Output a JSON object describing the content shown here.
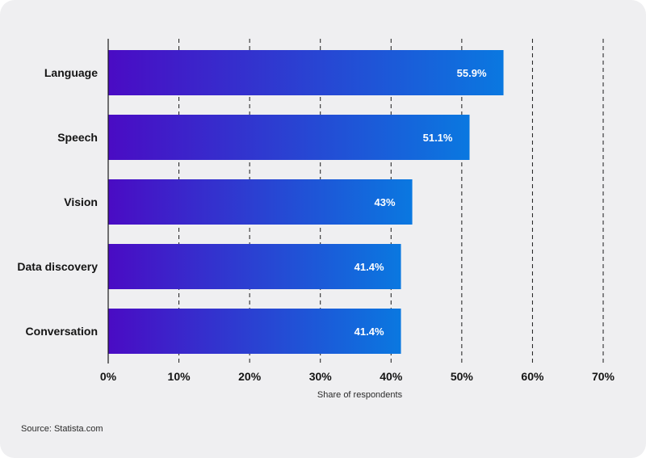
{
  "chart_data": {
    "type": "bar",
    "orientation": "horizontal",
    "categories": [
      "Language",
      "Speech",
      "Vision",
      "Data discovery",
      "Conversation"
    ],
    "values": [
      55.9,
      51.1,
      43,
      41.4,
      41.4
    ],
    "value_labels": [
      "55.9%",
      "51.1%",
      "43%",
      "41.4%",
      "41.4%"
    ],
    "xlabel": "Share of respondents",
    "xlim": [
      0,
      70
    ],
    "ticks": [
      0,
      10,
      20,
      30,
      40,
      50,
      60,
      70
    ],
    "tick_labels": [
      "0%",
      "10%",
      "20%",
      "30%",
      "40%",
      "50%",
      "60%",
      "70%"
    ],
    "grid": "vertical dashed",
    "colors": {
      "bar_start": "#4a0bc4",
      "bar_end": "#0a78e0"
    }
  },
  "source": "Source: Statista.com"
}
